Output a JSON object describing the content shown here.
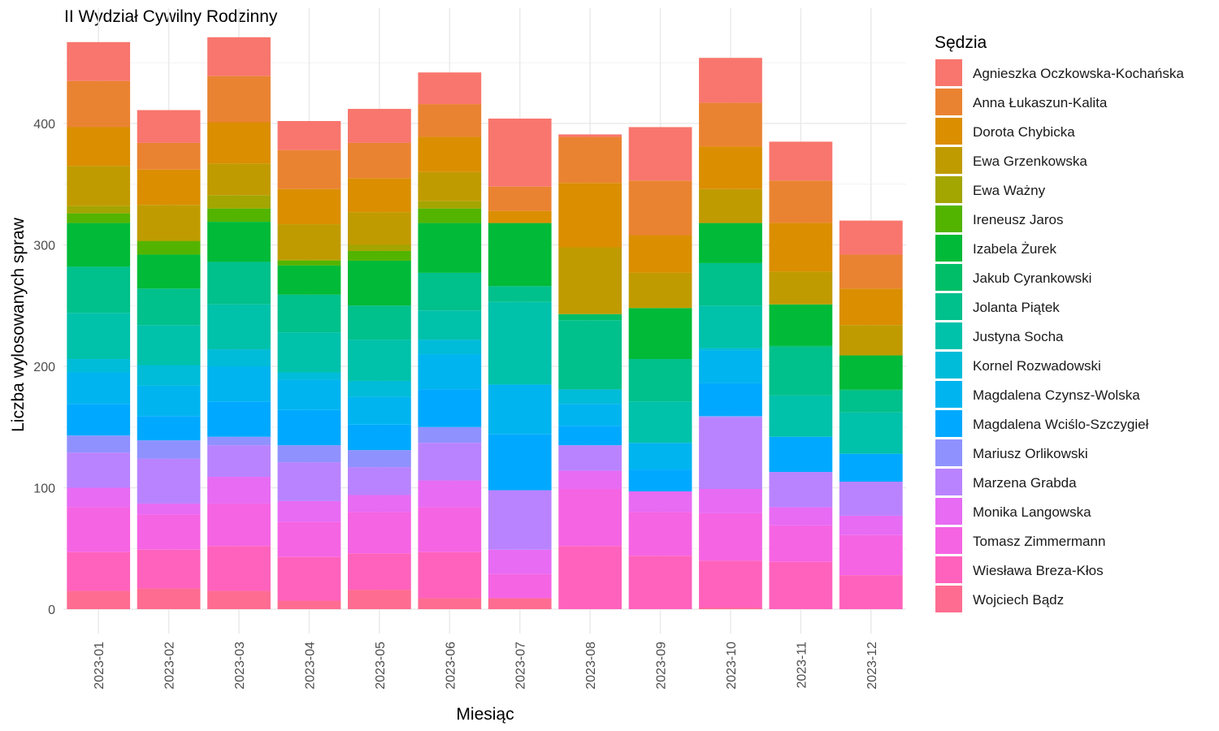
{
  "chart_data": {
    "type": "bar",
    "stacked": true,
    "title": "II Wydział Cywilny Rodzinny",
    "xlabel": "Miesiąc",
    "ylabel": "Liczba wylosowanych spraw",
    "ylim": [
      0,
      480
    ],
    "yticks": [
      0,
      100,
      200,
      300,
      400
    ],
    "grid": true,
    "legend_title": "Sędzia",
    "legend_position": "right",
    "categories": [
      "2023-01",
      "2023-02",
      "2023-03",
      "2023-04",
      "2023-05",
      "2023-06",
      "2023-07",
      "2023-08",
      "2023-09",
      "2023-10",
      "2023-11",
      "2023-12"
    ],
    "series": [
      {
        "name": "Wojciech Bądz",
        "color": "#FF6C91",
        "values": [
          15,
          17,
          15,
          7,
          16,
          9,
          9,
          0,
          0,
          1,
          0,
          0
        ]
      },
      {
        "name": "Wiesława Breza-Kłos",
        "color": "#FF62BC",
        "values": [
          32,
          32,
          37,
          36,
          30,
          38,
          0,
          52,
          44,
          39,
          39,
          28
        ]
      },
      {
        "name": "Tomasz Zimmermann",
        "color": "#F564E3",
        "values": [
          37,
          29,
          35,
          29,
          34,
          37,
          20,
          47,
          36,
          39,
          30,
          33
        ]
      },
      {
        "name": "Monika Langowska",
        "color": "#E76BF3",
        "values": [
          16,
          9,
          22,
          17,
          14,
          22,
          20,
          15,
          17,
          20,
          15,
          16
        ]
      },
      {
        "name": "Marzena Grabda",
        "color": "#B983FF",
        "values": [
          29,
          37,
          26,
          32,
          23,
          31,
          49,
          21,
          0,
          59,
          29,
          28
        ]
      },
      {
        "name": "Mariusz Orlikowski",
        "color": "#8F91FF",
        "values": [
          14,
          15,
          7,
          14,
          14,
          13,
          0,
          0,
          0,
          1,
          0,
          0
        ]
      },
      {
        "name": "Magdalena Wciślo-Szczygieł",
        "color": "#00A9FF",
        "values": [
          26,
          20,
          29,
          29,
          21,
          31,
          46,
          16,
          18,
          27,
          29,
          23
        ]
      },
      {
        "name": "Magdalena Czynsz-Wolska",
        "color": "#00B4F0",
        "values": [
          26,
          25,
          29,
          25,
          23,
          29,
          41,
          18,
          22,
          27,
          0,
          0
        ]
      },
      {
        "name": "Kornel Rozwadowski",
        "color": "#00BCD8",
        "values": [
          11,
          17,
          14,
          6,
          13,
          12,
          0,
          12,
          0,
          2,
          0,
          0
        ]
      },
      {
        "name": "Justyna Socha",
        "color": "#00C1AA",
        "values": [
          38,
          33,
          37,
          33,
          34,
          24,
          68,
          0,
          34,
          35,
          34,
          34
        ]
      },
      {
        "name": "Jolanta Piątek",
        "color": "#00C08B",
        "values": [
          38,
          30,
          35,
          31,
          28,
          31,
          13,
          57,
          35,
          35,
          40,
          18
        ]
      },
      {
        "name": "Jakub Cyrankowski",
        "color": "#00BE67",
        "values": [
          0,
          0,
          0,
          0,
          0,
          0,
          0,
          5,
          0,
          0,
          1,
          1
        ]
      },
      {
        "name": "Izabela Żurek",
        "color": "#00BA38",
        "values": [
          36,
          28,
          33,
          24,
          37,
          41,
          52,
          0,
          42,
          33,
          34,
          28
        ]
      },
      {
        "name": "Ireneusz Jaros",
        "color": "#53B400",
        "values": [
          8,
          11,
          11,
          4,
          8,
          12,
          0,
          0,
          0,
          0,
          0,
          0
        ]
      },
      {
        "name": "Ewa Ważny",
        "color": "#A3A500",
        "values": [
          6,
          1,
          11,
          1,
          5,
          6,
          0,
          0,
          0,
          0,
          0,
          0
        ]
      },
      {
        "name": "Ewa Grzenkowska",
        "color": "#C09B00",
        "values": [
          33,
          29,
          26,
          29,
          27,
          24,
          0,
          55,
          29,
          28,
          27,
          25
        ]
      },
      {
        "name": "Dorota Chybicka",
        "color": "#DB8E00",
        "values": [
          32,
          29,
          34,
          29,
          28,
          29,
          10,
          53,
          31,
          35,
          40,
          30
        ]
      },
      {
        "name": "Anna Łukaszun-Kalita",
        "color": "#EA8331",
        "values": [
          38,
          22,
          38,
          32,
          29,
          27,
          20,
          38,
          45,
          36,
          35,
          28
        ]
      },
      {
        "name": "Agnieszka Oczkowska-Kochańska",
        "color": "#F8766D",
        "values": [
          32,
          27,
          32,
          24,
          28,
          26,
          56,
          2,
          44,
          37,
          32,
          28
        ]
      }
    ]
  }
}
